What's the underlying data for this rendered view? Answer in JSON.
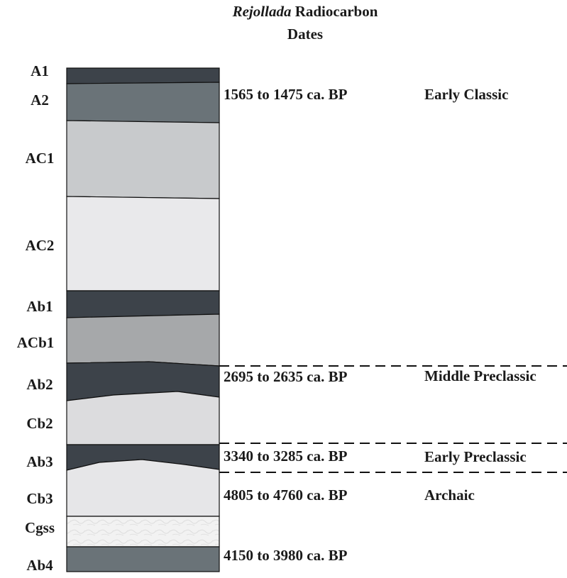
{
  "title": {
    "italic": "Rejollada",
    "line1": "Radiocarbon",
    "line2": "Dates"
  },
  "horizons": [
    "A1",
    "A2",
    "AC1",
    "AC2",
    "Ab1",
    "ACb1",
    "Ab2",
    "Cb2",
    "Ab3",
    "Cb3",
    "Cgss",
    "Ab4"
  ],
  "dates": [
    "1565 to 1475 ca. BP",
    "2695 to 2635 ca. BP",
    "3340 to 3285 ca. BP",
    "4805 to 4760 ca. BP",
    "4150 to 3980 ca. BP"
  ],
  "periods": [
    "Early Classic",
    "Middle Preclassic",
    "Early Preclassic",
    "Archaic"
  ]
}
